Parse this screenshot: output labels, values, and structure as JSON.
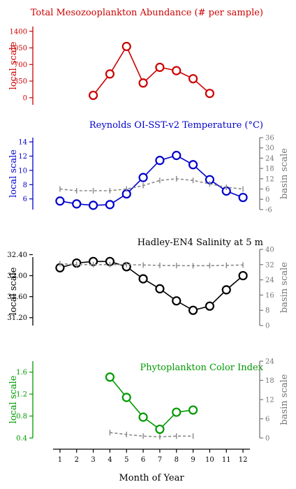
{
  "chart_data": [
    {
      "type": "line",
      "title": "Total Mesozooplankton Abundance (# per sample)",
      "color": "#cc0000",
      "left_axis": {
        "label": "local scale",
        "ticks": [
          0,
          350,
          700,
          1050,
          1400
        ],
        "tick_labels": [
          "0",
          "350",
          "700",
          "1050",
          "1400"
        ],
        "ylim": [
          -150,
          1500
        ]
      },
      "series": [
        {
          "x": [
            3,
            4,
            5,
            6,
            7,
            8,
            9,
            10
          ],
          "values": [
            50,
            500,
            1080,
            310,
            640,
            570,
            400,
            90
          ]
        }
      ]
    },
    {
      "type": "line",
      "title": "Reynolds OI-SST-v2 Temperature (°C)",
      "color": "#0000cc",
      "left_axis": {
        "label": "local scale",
        "ticks": [
          6,
          8,
          10,
          12,
          14
        ],
        "tick_labels": [
          "6",
          "8",
          "10",
          "12",
          "14"
        ],
        "ylim": [
          4.5,
          14.6
        ]
      },
      "right_axis": {
        "label": "basin scale",
        "ticks": [
          -6,
          0,
          6,
          12,
          18,
          24,
          30,
          36
        ],
        "tick_labels": [
          "-6",
          "0",
          "6",
          "12",
          "18",
          "24",
          "30",
          "36"
        ],
        "ylim": [
          -6,
          36
        ]
      },
      "series": [
        {
          "axis": "left",
          "x": [
            1,
            2,
            3,
            4,
            5,
            6,
            7,
            8,
            9,
            10,
            11,
            12
          ],
          "values": [
            5.7,
            5.3,
            5.1,
            5.2,
            6.7,
            9.0,
            11.4,
            12.1,
            10.8,
            8.7,
            7.1,
            6.2
          ]
        },
        {
          "axis": "right",
          "style": "dashed",
          "x": [
            1,
            2,
            3,
            4,
            5,
            6,
            7,
            8,
            9,
            10,
            11,
            12
          ],
          "values": [
            6,
            5,
            5,
            5,
            6,
            8,
            11,
            12,
            11,
            9,
            7,
            6
          ]
        }
      ]
    },
    {
      "type": "line",
      "title": "Hadley-EN4 Salinity at 5 m",
      "color": "#000000",
      "left_axis": {
        "label": "local scale",
        "ticks": [
          31.2,
          31.6,
          32.0,
          32.4
        ],
        "tick_labels": [
          "31.20",
          "31.60",
          "32.00",
          "32.40"
        ],
        "ylim": [
          31.05,
          32.5
        ]
      },
      "right_axis": {
        "label": "basin scale",
        "ticks": [
          0,
          8,
          16,
          24,
          32,
          40
        ],
        "tick_labels": [
          "0",
          "8",
          "16",
          "24",
          "32",
          "40"
        ],
        "ylim": [
          0,
          40
        ]
      },
      "series": [
        {
          "axis": "left",
          "x": [
            1,
            2,
            3,
            4,
            5,
            6,
            7,
            8,
            9,
            10,
            11,
            12
          ],
          "values": [
            32.15,
            32.24,
            32.27,
            32.27,
            32.17,
            31.94,
            31.75,
            31.52,
            31.34,
            31.42,
            31.73,
            32.0
          ]
        },
        {
          "axis": "right",
          "style": "dashed",
          "x": [
            1,
            2,
            3,
            4,
            5,
            6,
            7,
            8,
            9,
            10,
            11,
            12
          ],
          "values": [
            32.5,
            32,
            32,
            32,
            32,
            31.8,
            31.6,
            31.5,
            31.4,
            31.5,
            31.6,
            31.8
          ]
        }
      ]
    },
    {
      "type": "line",
      "title": "Phytoplankton Color Index",
      "color": "#009900",
      "left_axis": {
        "label": "local scale",
        "ticks": [
          0.4,
          0.8,
          1.2,
          1.6
        ],
        "tick_labels": [
          "0.4",
          "0.8",
          "1.2",
          "1.6"
        ],
        "ylim": [
          0.4,
          1.8
        ]
      },
      "right_axis": {
        "label": "basin scale",
        "ticks": [
          0,
          6,
          12,
          18,
          24
        ],
        "tick_labels": [
          "0",
          "6",
          "12",
          "18",
          "24"
        ],
        "ylim": [
          0,
          24
        ]
      },
      "series": [
        {
          "axis": "left",
          "x": [
            4,
            5,
            6,
            7,
            8,
            9
          ],
          "values": [
            1.51,
            1.14,
            0.78,
            0.56,
            0.87,
            0.91
          ]
        },
        {
          "axis": "right",
          "style": "dashed",
          "x": [
            4,
            5,
            6,
            7,
            8,
            9
          ],
          "values": [
            1.7,
            1.1,
            0.6,
            0.4,
            0.6,
            0.6
          ]
        }
      ]
    }
  ],
  "x_axis": {
    "label": "Month of Year",
    "ticks": [
      1,
      2,
      3,
      4,
      5,
      6,
      7,
      8,
      9,
      10,
      11,
      12
    ],
    "tick_labels": [
      "1",
      "2",
      "3",
      "4",
      "5",
      "6",
      "7",
      "8",
      "9",
      "10",
      "11",
      "12"
    ],
    "xlim": [
      0.5,
      12.5
    ]
  },
  "colors": {
    "basin_series": "#888888",
    "right_axis": "#777777",
    "x_axis": "#000000"
  }
}
